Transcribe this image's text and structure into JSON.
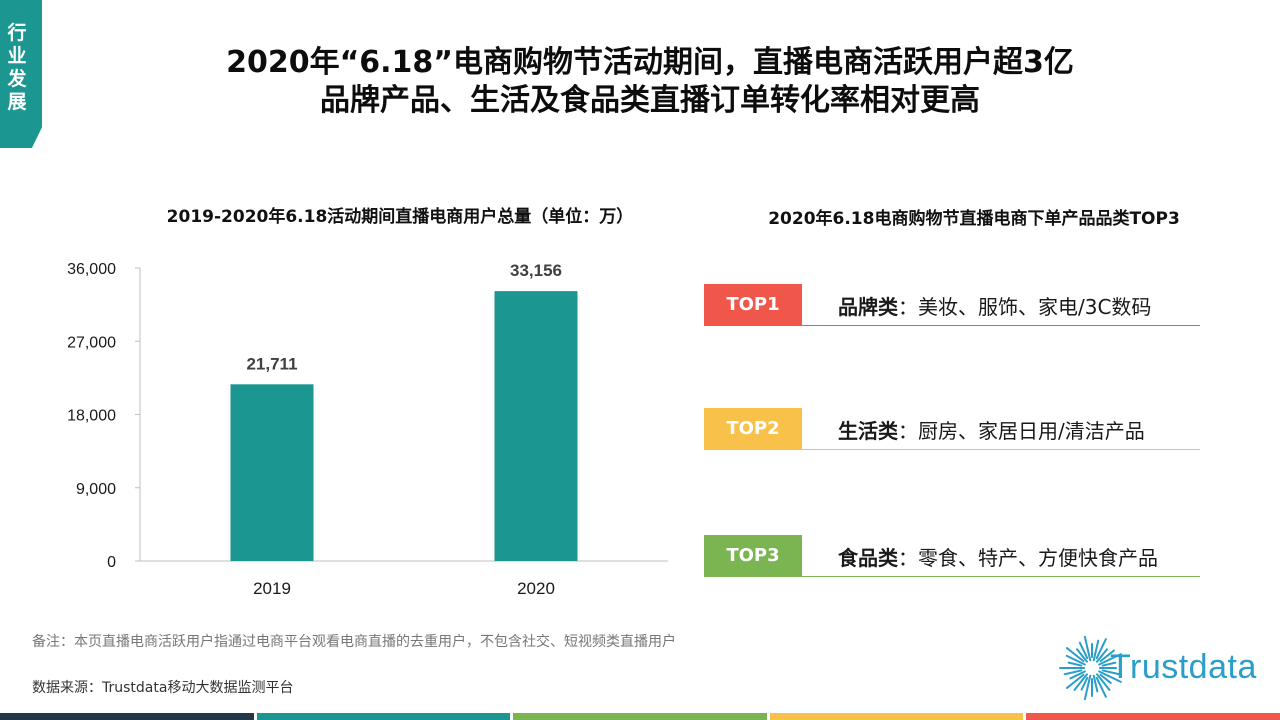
{
  "section_tab": {
    "lines": [
      "行",
      "业",
      "发",
      "展"
    ],
    "color": "#1b9690"
  },
  "title": {
    "line1": "2020年“6.18”电商购物节活动期间，直播电商活跃用户超3亿",
    "line2": "品牌产品、生活及食品类直播订单转化率相对更高"
  },
  "chart_data": {
    "type": "bar",
    "title": "2019-2020年6.18活动期间直播电商用户总量（单位：万）",
    "categories": [
      "2019",
      "2020"
    ],
    "values": [
      21711,
      33156
    ],
    "value_labels": [
      "21,711",
      "33,156"
    ],
    "ylim": [
      0,
      36000
    ],
    "yticks": [
      0,
      9000,
      18000,
      27000,
      36000
    ],
    "ytick_labels": [
      "0",
      "9,000",
      "18,000",
      "27,000",
      "36,000"
    ],
    "bar_color": "#1b9690",
    "grid": false,
    "xlabel": "",
    "ylabel": ""
  },
  "top3": {
    "title": "2020年6.18电商购物节直播电商下单产品品类TOP3",
    "items": [
      {
        "badge": "TOP1",
        "category": "品牌类",
        "separator": "：",
        "detail": "美妆、服饰、家电/3C数码",
        "color": "#f0574a"
      },
      {
        "badge": "TOP2",
        "category": "生活类",
        "separator": "：",
        "detail": "厨房、家居日用/清洁产品",
        "color": "#f8c14a"
      },
      {
        "badge": "TOP3",
        "category": "食品类",
        "separator": "：",
        "detail": "零食、特产、方便快食产品",
        "color": "#7ab552"
      }
    ]
  },
  "footer": {
    "note": "备注：本页直播电商活跃用户指通过电商平台观看电商直播的去重用户，不包含社交、短视频类直播用户",
    "source": "数据来源：Trustdata移动大数据监测平台",
    "logo_text": "Trustdata",
    "logo_icon": "sunburst-logo-icon",
    "logo_color": "#2a9ec8"
  },
  "bottom_bar_colors": [
    "#243746",
    "#1b9690",
    "#7ab552",
    "#f8c14a",
    "#f0574a"
  ]
}
